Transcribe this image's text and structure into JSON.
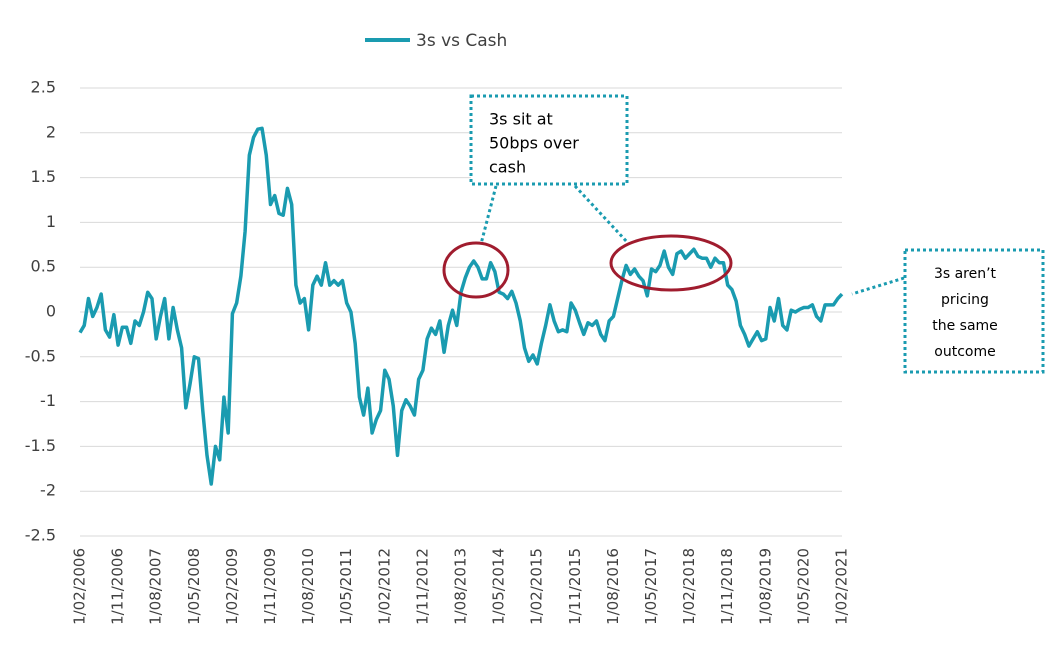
{
  "chart_data": {
    "type": "line",
    "categories": [
      "1/02/2006",
      null,
      null,
      null,
      null,
      null,
      null,
      null,
      null,
      "1/11/2006",
      null,
      null,
      null,
      null,
      null,
      null,
      null,
      null,
      "1/08/2007",
      null,
      null,
      null,
      null,
      null,
      null,
      null,
      null,
      "1/05/2008",
      null,
      null,
      null,
      null,
      null,
      null,
      null,
      null,
      "1/02/2009",
      null,
      null,
      null,
      null,
      null,
      null,
      null,
      null,
      "1/11/2009",
      null,
      null,
      null,
      null,
      null,
      null,
      null,
      null,
      "1/08/2010",
      null,
      null,
      null,
      null,
      null,
      null,
      null,
      null,
      "1/05/2011",
      null,
      null,
      null,
      null,
      null,
      null,
      null,
      null,
      "1/02/2012",
      null,
      null,
      null,
      null,
      null,
      null,
      null,
      null,
      "1/11/2012",
      null,
      null,
      null,
      null,
      null,
      null,
      null,
      null,
      "1/08/2013",
      null,
      null,
      null,
      null,
      null,
      null,
      null,
      null,
      "1/05/2014",
      null,
      null,
      null,
      null,
      null,
      null,
      null,
      null,
      "1/02/2015",
      null,
      null,
      null,
      null,
      null,
      null,
      null,
      null,
      "1/11/2015",
      null,
      null,
      null,
      null,
      null,
      null,
      null,
      null,
      "1/08/2016",
      null,
      null,
      null,
      null,
      null,
      null,
      null,
      null,
      "1/05/2017",
      null,
      null,
      null,
      null,
      null,
      null,
      null,
      null,
      "1/02/2018",
      null,
      null,
      null,
      null,
      null,
      null,
      null,
      null,
      "1/11/2018",
      null,
      null,
      null,
      null,
      null,
      null,
      null,
      null,
      "1/08/2019",
      null,
      null,
      null,
      null,
      null,
      null,
      null,
      null,
      "1/05/2020",
      null,
      null,
      null,
      null,
      null,
      null,
      null,
      null,
      "1/02/2021"
    ],
    "series": [
      {
        "name": "3s vs Cash",
        "color": "#1a9bb0",
        "values": [
          -0.23,
          -0.15,
          0.15,
          -0.05,
          0.05,
          0.2,
          -0.2,
          -0.28,
          -0.03,
          -0.37,
          -0.17,
          -0.17,
          -0.35,
          -0.1,
          -0.15,
          0.0,
          0.22,
          0.15,
          -0.3,
          -0.05,
          0.15,
          -0.3,
          0.05,
          -0.2,
          -0.4,
          -1.07,
          -0.8,
          -0.5,
          -0.52,
          -1.1,
          -1.6,
          -1.92,
          -1.5,
          -1.65,
          -0.95,
          -1.35,
          -0.02,
          0.1,
          0.4,
          0.9,
          1.75,
          1.95,
          2.04,
          2.05,
          1.75,
          1.2,
          1.3,
          1.1,
          1.08,
          1.38,
          1.2,
          0.3,
          0.1,
          0.15,
          -0.2,
          0.3,
          0.4,
          0.3,
          0.55,
          0.3,
          0.35,
          0.3,
          0.35,
          0.1,
          0.0,
          -0.35,
          -0.95,
          -1.15,
          -0.85,
          -1.35,
          -1.2,
          -1.1,
          -0.65,
          -0.75,
          -1.05,
          -1.6,
          -1.1,
          -0.98,
          -1.05,
          -1.15,
          -0.75,
          -0.65,
          -0.3,
          -0.18,
          -0.25,
          -0.1,
          -0.45,
          -0.15,
          0.02,
          -0.15,
          0.22,
          0.38,
          0.5,
          0.57,
          0.5,
          0.37,
          0.37,
          0.55,
          0.45,
          0.22,
          0.2,
          0.15,
          0.23,
          0.1,
          -0.1,
          -0.4,
          -0.55,
          -0.48,
          -0.58,
          -0.35,
          -0.15,
          0.08,
          -0.1,
          -0.22,
          -0.2,
          -0.22,
          0.1,
          0.02,
          -0.12,
          -0.25,
          -0.12,
          -0.15,
          -0.1,
          -0.25,
          -0.32,
          -0.1,
          -0.05,
          0.15,
          0.35,
          0.52,
          0.42,
          0.48,
          0.4,
          0.35,
          0.18,
          0.48,
          0.45,
          0.52,
          0.68,
          0.5,
          0.42,
          0.65,
          0.68,
          0.6,
          0.65,
          0.7,
          0.62,
          0.6,
          0.6,
          0.5,
          0.6,
          0.55,
          0.55,
          0.3,
          0.25,
          0.12,
          -0.15,
          -0.25,
          -0.38,
          -0.3,
          -0.22,
          -0.32,
          -0.3,
          0.05,
          -0.1,
          0.15,
          -0.15,
          -0.2,
          0.02,
          0.0,
          0.03,
          0.05,
          0.05,
          0.08,
          -0.05,
          -0.1,
          0.08,
          0.08,
          0.08,
          0.15,
          0.2
        ]
      }
    ],
    "ylim": [
      -2.5,
      2.5
    ],
    "yticks": [
      2.5,
      2,
      1.5,
      1,
      0.5,
      0,
      -0.5,
      -1,
      -1.5,
      -2,
      -2.5
    ],
    "grid": true,
    "legend": "top",
    "annotations": [
      {
        "lines": [
          "3s sit at",
          "50bps over",
          "cash"
        ]
      },
      {
        "lines": [
          "3s aren’t",
          "pricing",
          "the same",
          "outcome"
        ]
      }
    ]
  }
}
